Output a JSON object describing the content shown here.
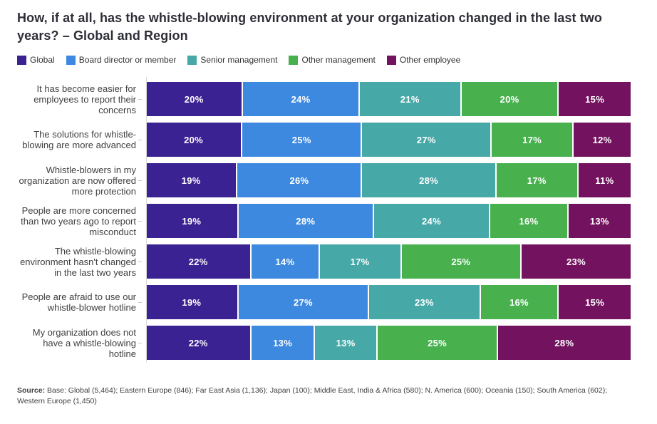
{
  "title": "How, if at all, has the whistle-blowing environment at your organization changed in the last two years? – Global and Region",
  "source": {
    "label": "Source:",
    "text": " Base: Global (5,464); Eastern Europe (846); Far East Asia (1,136); Japan (100); Middle East, India & Africa (580); N. America (600); Oceania (150); South America (602); Western Europe (1,450)"
  },
  "chart_data": {
    "type": "bar",
    "orientation": "horizontal-stacked",
    "value_suffix": "%",
    "legend_position": "top",
    "categories": [
      "It has become easier for employees to report their concerns",
      "The solutions for whistle-blowing are more advanced",
      "Whistle-blowers in my organization are now offered more protection",
      "People are more concerned than two years ago to report misconduct",
      "The whistle-blowing environment hasn't changed in the last two years",
      "People are afraid to use our whistle-blower hotline",
      "My organization does not have a whistle-blowing hotline"
    ],
    "series": [
      {
        "name": "Global",
        "color": "#3b2292",
        "values": [
          20,
          20,
          19,
          19,
          22,
          19,
          22
        ]
      },
      {
        "name": "Board director or member",
        "color": "#3d89e0",
        "values": [
          24,
          25,
          26,
          28,
          14,
          27,
          13
        ]
      },
      {
        "name": "Senior management",
        "color": "#47a8a8",
        "values": [
          21,
          27,
          28,
          24,
          17,
          23,
          13
        ]
      },
      {
        "name": "Other management",
        "color": "#48b14e",
        "values": [
          20,
          17,
          17,
          16,
          25,
          16,
          25
        ]
      },
      {
        "name": "Other employee",
        "color": "#73135f",
        "values": [
          15,
          12,
          11,
          13,
          23,
          15,
          28
        ]
      }
    ]
  }
}
